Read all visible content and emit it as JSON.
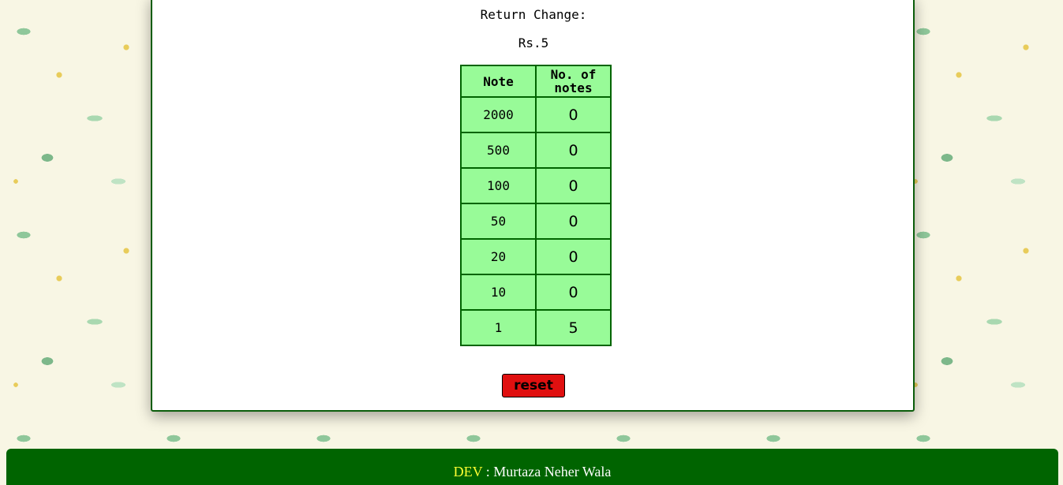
{
  "result": {
    "label": "Return Change:",
    "amount": "Rs.5"
  },
  "table": {
    "headers": [
      "Note",
      "No. of notes"
    ],
    "rows": [
      {
        "note": "2000",
        "count": "0"
      },
      {
        "note": "500",
        "count": "0"
      },
      {
        "note": "100",
        "count": "0"
      },
      {
        "note": "50",
        "count": "0"
      },
      {
        "note": "20",
        "count": "0"
      },
      {
        "note": "10",
        "count": "0"
      },
      {
        "note": "1",
        "count": "5"
      }
    ]
  },
  "reset_label": "reset",
  "footer": {
    "dev_label": "DEV",
    "separator": " : ",
    "author": "Murtaza Neher Wala"
  },
  "colors": {
    "panel_border": "#0b5d0b",
    "table_bg": "#98fb98",
    "table_border": "#006400",
    "reset_bg": "#e01010",
    "footer_bg": "#006400",
    "dev_label": "#ffff33"
  }
}
